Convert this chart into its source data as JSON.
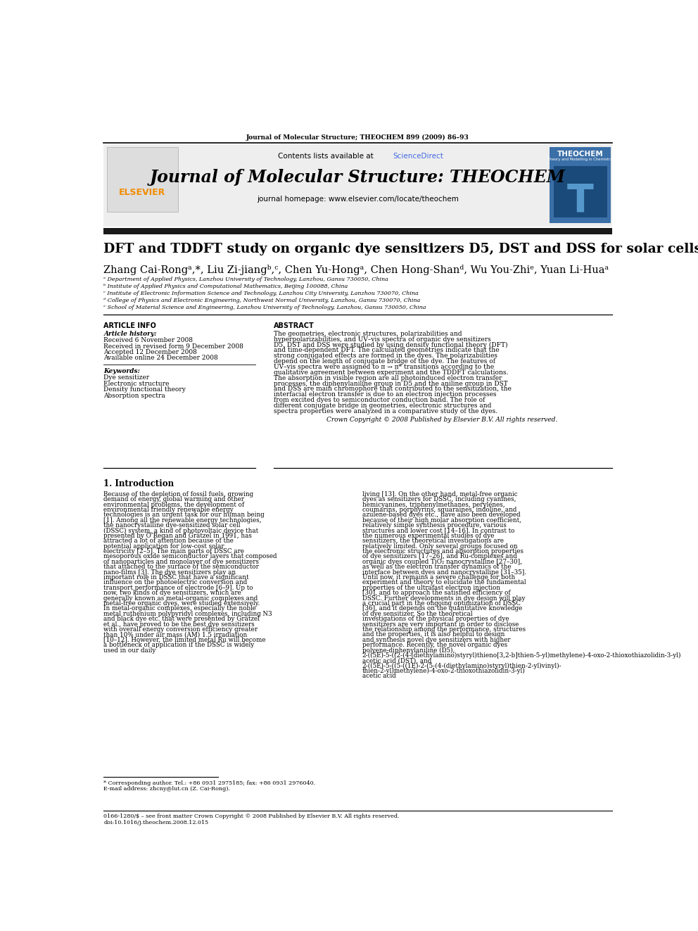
{
  "page_header": "Journal of Molecular Structure; THEOCHEM 899 (2009) 86–93",
  "journal_title": "Journal of Molecular Structure: THEOCHEM",
  "journal_homepage": "journal homepage: www.elsevier.com/locate/theochem",
  "contents_line": "Contents lists available at ScienceDirect",
  "paper_title": "DFT and TDDFT study on organic dye sensitizers D5, DST and DSS for solar cells",
  "authors_full": "Zhang Cai-Rongᵃ,*, Liu Zi-jiangᵇ,ᶜ, Chen Yu-Hongᵃ, Chen Hong-Shanᵈ, Wu You-Zhiᵉ, Yuan Li-Huaᵃ",
  "affiliations": [
    "ᵃ Department of Applied Physics, Lanzhou University of Technology, Lanzhou, Gansu 730050, China",
    "ᵇ Institute of Applied Physics and Computational Mathematics, Beijing 100088, China",
    "ᶜ Institute of Electronic Information Science and Technology, Lanzhou City University, Lanzhou 730070, China",
    "ᵈ College of Physics and Electronic Engineering, Northwest Normal University, Lanzhou, Gansu 730070, China",
    "ᵉ School of Material Science and Engineering, Lanzhou University of Technology, Lanzhou, Gansu 730050, China"
  ],
  "article_info_title": "ARTICLE INFO",
  "article_history_title": "Article history:",
  "article_history": [
    "Received 6 November 2008",
    "Received in revised form 9 December 2008",
    "Accepted 12 December 2008",
    "Available online 24 December 2008"
  ],
  "keywords_title": "Keywords:",
  "keywords": [
    "Dye sensitizer",
    "Electronic structure",
    "Density functional theory",
    "Absorption spectra"
  ],
  "abstract_title": "ABSTRACT",
  "abstract_text": "The geometries, electronic structures, polarizabilities and hyperpolarizabilities, and UV–vis spectra of organic dye sensitizers D5, DST and DSS were studied by using density functional theory (DFT) and time-dependent DFT. The calculated geometries indicate that the strong conjugated effects are formed in the dyes. The polarizabilities depend on the length of conjugate bridge of the dye. The features of UV–vis spectra were assigned to π → π* transitions according to the qualitative agreement between experiment and the TDDFT calculations. The absorption in visible region are all photoinduced electron transfer processes, the diphenylaniline group in D5 and the aniline group in DST and DSS are main chromophore that contributed to the sensitization, the interfacial electron transfer is due to an electron injection processes from excited dyes to semiconductor conduction band. The role of different conjugate bridge in geometries, electronic structures and spectra properties were analyzed in a comparative study of the dyes.",
  "copyright_text": "Crown Copyright © 2008 Published by Elsevier B.V. All rights reserved.",
  "section1_title": "1. Introduction",
  "intro_col1": "Because of the depletion of fossil fuels, growing demand of energy, global warming and other environmental problems, the development of environmental friendly renewable energy technologies is an urgent task for our human being [1]. Among all the renewable energy technologies, the nanocrystalline dye-sensitized solar cell (DSSC) system, a kind of photovoltaic device that presented by O’Regan and Grätzel in 1991, has attracted a lot of attention because of the potential application for low-cost solar electricity [2–5]. The main parts of DSSC are mesoporous oxide semiconductor layers that composed of nanoparticles and monolayer of dye sensitizers that attached to the surface of the semiconductor nano-films [3]. The dye sensitizers play an important role in DSSC that have a significant influence on the photoelectric conversion and transport performance of electrode [6–9]. Up to now, two kinds of dye sensitizers, which are generally known as metal-organic complexes and metal-free organic dyes, were studied extensively. In metal-organic complexes, especially the noble metal ruthenium polypyridyl complexes, including N3 and black dye etc. that were presented by Grätzel et al., have proved to be the best dye sensitizers with overall energy conversion efficiency greater than 10% under air mass (AM) 1.5 irradiation [10–12]. However, the limited metal Ru will become a bottleneck of application if the DSSC is widely used in our daily",
  "intro_col2": "living [13]. On the other hand, metal-free organic dyes as sensitizers for DSSC, including cyanines, hemicyanines, triphenylmethanes, perylenes, coumarins, porphyrins, squaraines, indoline, and azulene-based dyes etc., have also been developed because of their high molar absorption coefficient, relatively simple synthesis procedure, various structures and lower cost [14–16]. In contrast to the numerous experimental studies of dye sensitizers, the theoretical investigations are relatively limited. Only several groups focused on the electronic structures and absorption properties of dye sensitizers [17–26], and Ru-complexes and organic dyes coupled TiO₂ nanocrystalline [27–30], as well as the electron transfer dynamics of the interface between dyes and nanocrystalline [31–35]. Until now, it remains a severe challenge for both experiment and theory to elucidate the fundamental properties of the ultrafast electron injection [30], and to approach the satisfied efficiency of DSSC. Further developments in dye design will play a crucial part in the ongoing optimization of DSSC [36], and it depends on the quantitative knowledge of dye sensitizer. So the theoretical investigations of the physical properties of dye sensitizers are very important in order to disclose the relationship among the performance, structures and the properties, it is also helpful to design and synthesis novel dye sensitizers with higher performance.\n    Recently, the novel organic dyes polyene-diphenylaniline (D5), 2-((5E)-5-((2-(4-(diethylamino)styryl)thieno[3,2-b]thien-5-yl)methylene)-4-oxo-2-thioxothiazolidin-3-yl) acetic acid (DST), and 2-((5E)-5-((5-((1E)-2-(5-(4-(diethylamino)styryl)thien-2-yl)vinyl)- thien-2-yl)methylene)-4-oxo-2-thioxothiazolidin-3-yl) acetic acid",
  "footnote1": "* Corresponding author. Tel.: +86 0931 2975185; fax: +86 0931 2976040.",
  "footnote2": "E-mail address: zhcny@lut.cn (Z. Cai-Rong).",
  "footer_issn": "0166-1280/$ – see front matter Crown Copyright © 2008 Published by Elsevier B.V. All rights reserved.",
  "footer_doi": "doi:10.1016/j.theochem.2008.12.015",
  "header_bg_color": "#eeeeee",
  "black_bar_color": "#1a1a1a",
  "link_color": "#4169e1",
  "elsevier_orange": "#f28c00",
  "theochem_blue": "#3a6fa8"
}
